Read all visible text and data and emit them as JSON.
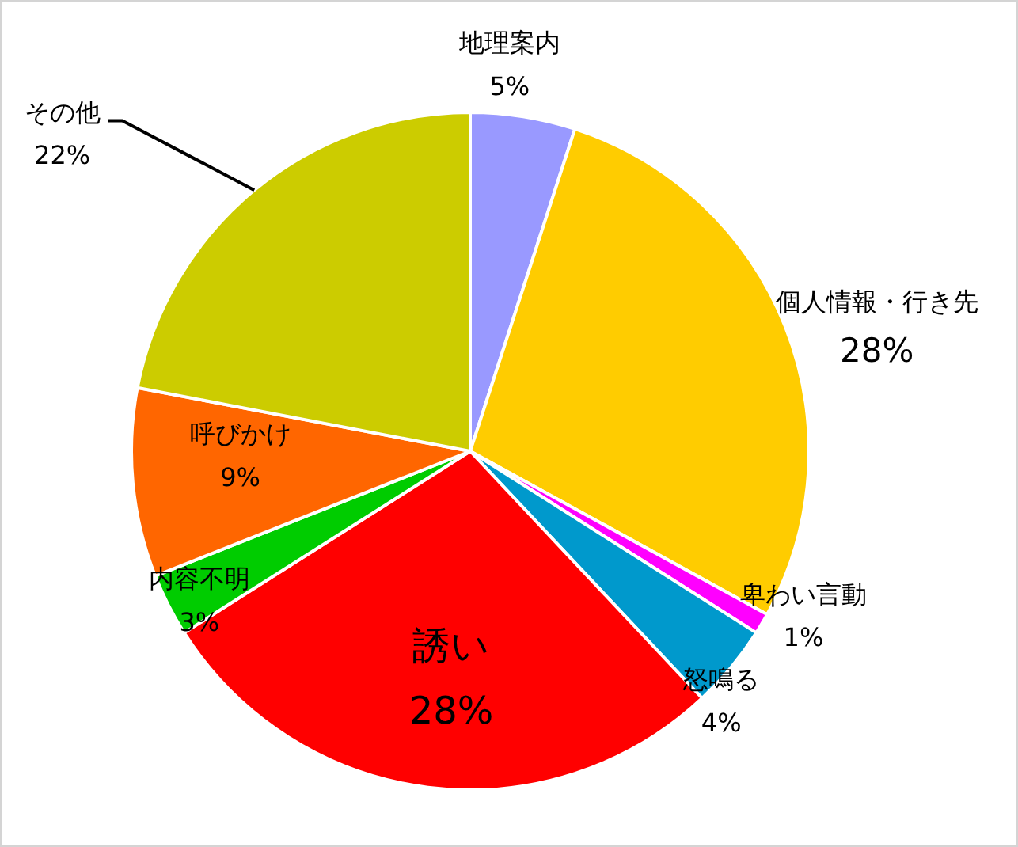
{
  "chart_data": {
    "type": "pie",
    "categories": [
      "地理案内",
      "個人情報・行き先",
      "卑わい言動",
      "怒鳴る",
      "誘い",
      "内容不明",
      "呼びかけ",
      "その他"
    ],
    "values": [
      5,
      28,
      1,
      4,
      28,
      3,
      9,
      22
    ],
    "colors": [
      "#9999ff",
      "#ffcc00",
      "#ff00ff",
      "#0099cc",
      "#ff0000",
      "#00cc00",
      "#ff6600",
      "#cccc00"
    ],
    "value_labels": [
      "5%",
      "28%",
      "1%",
      "4%",
      "28%",
      "3%",
      "9%",
      "22%"
    ]
  }
}
